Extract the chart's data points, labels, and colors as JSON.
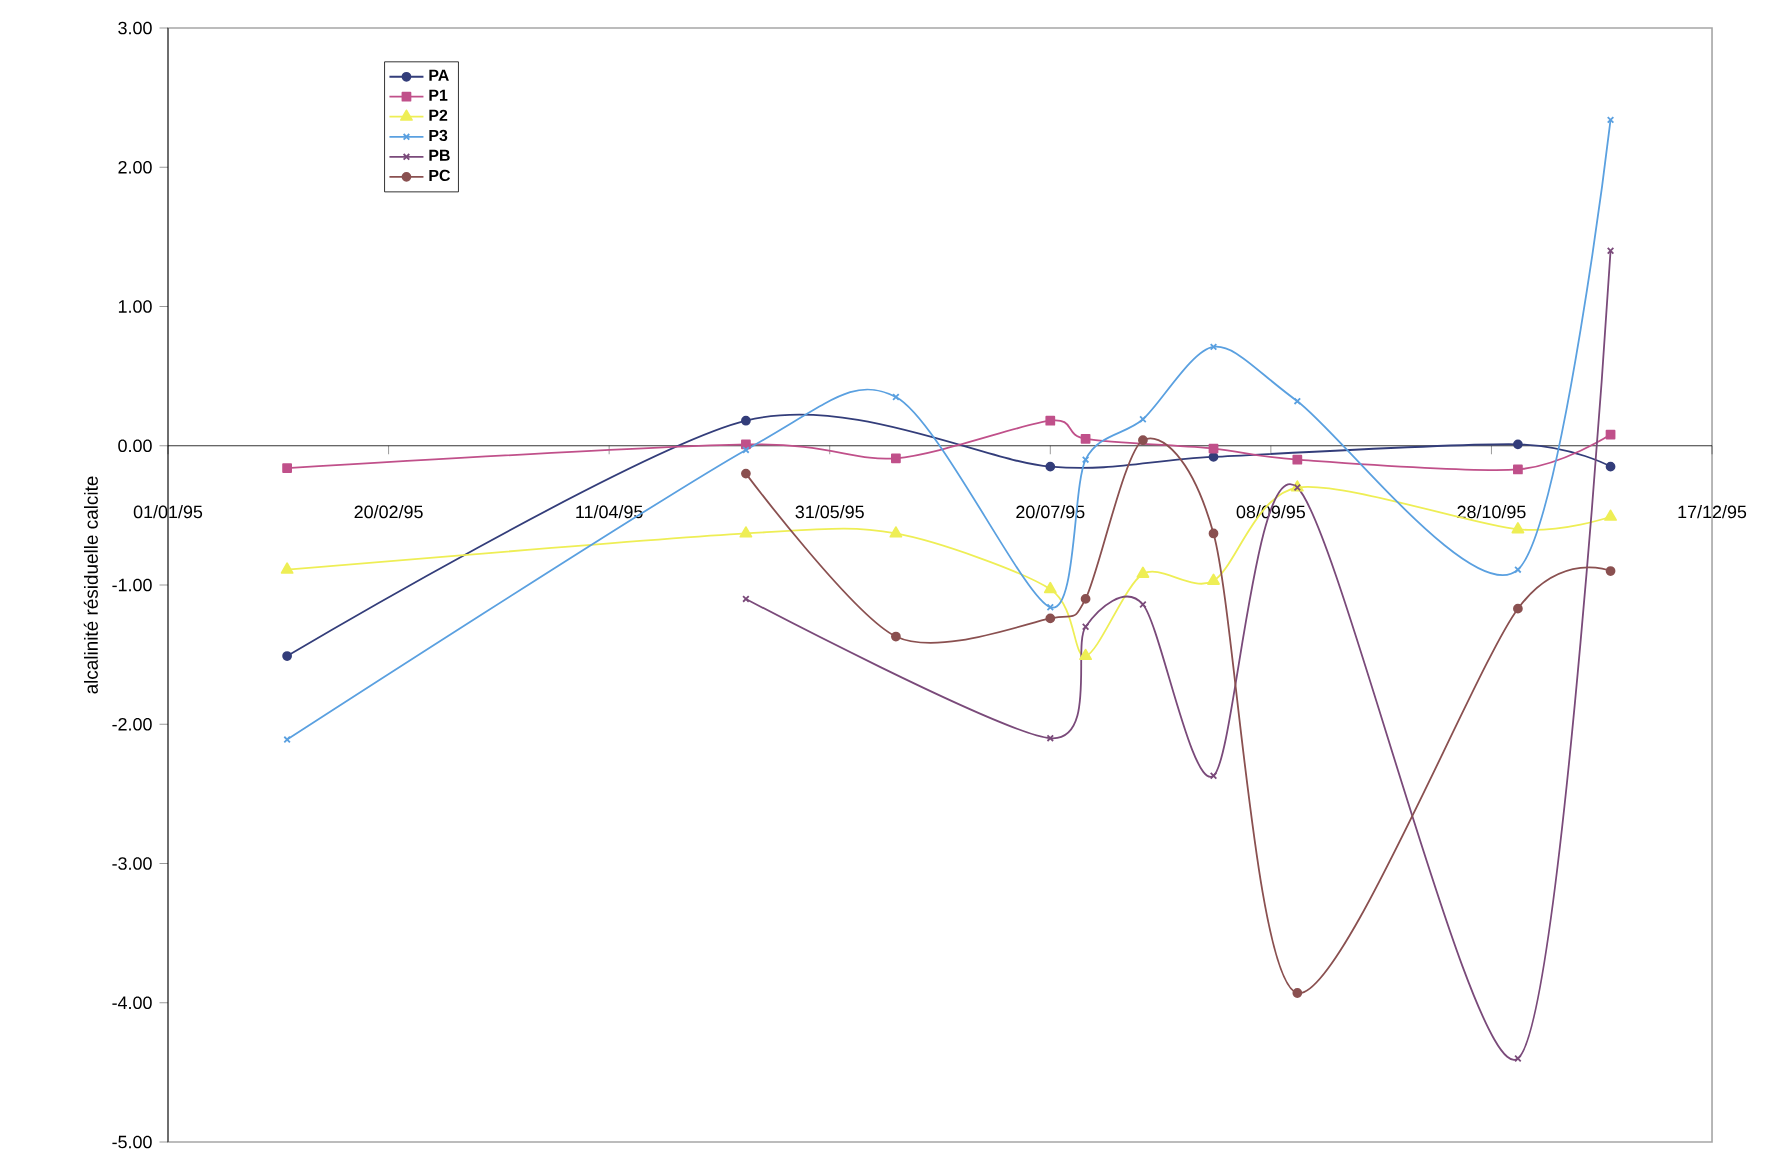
{
  "chart_data": {
    "type": "line",
    "ylabel": "alcalinité résiduelle calcite",
    "legend": "top left",
    "xlim": [
      "1995-01-01",
      "1995-12-17"
    ],
    "xticks": [
      {
        "value": "1995-01-01",
        "label": "01/01/95"
      },
      {
        "value": "1995-02-20",
        "label": "20/02/95"
      },
      {
        "value": "1995-04-11",
        "label": "11/04/95"
      },
      {
        "value": "1995-05-31",
        "label": "31/05/95"
      },
      {
        "value": "1995-07-20",
        "label": "20/07/95"
      },
      {
        "value": "1995-09-08",
        "label": "08/09/95"
      },
      {
        "value": "1995-10-28",
        "label": "28/10/95"
      },
      {
        "value": "1995-12-17",
        "label": "17/12/95"
      }
    ],
    "ylim": [
      -5,
      3
    ],
    "yticks": [
      {
        "value": -5,
        "label": "-5.00"
      },
      {
        "value": -4,
        "label": "-4.00"
      },
      {
        "value": -3,
        "label": "-3.00"
      },
      {
        "value": -2,
        "label": "-2.00"
      },
      {
        "value": -1,
        "label": "-1.00"
      },
      {
        "value": 0,
        "label": "0.00"
      },
      {
        "value": 1,
        "label": "1.00"
      },
      {
        "value": 2,
        "label": "2.00"
      },
      {
        "value": 3,
        "label": "3.00"
      }
    ],
    "series": [
      {
        "name": "PA",
        "color": "#333d7a",
        "marker": "circle",
        "x": [
          "1995-01-28",
          "1995-05-12",
          "1995-07-20",
          "1995-08-26",
          "1995-11-03",
          "1995-11-24"
        ],
        "values": [
          -1.51,
          0.18,
          -0.15,
          -0.08,
          0.01,
          -0.15
        ]
      },
      {
        "name": "P1",
        "color": "#c0508a",
        "marker": "square",
        "x": [
          "1995-01-28",
          "1995-05-12",
          "1995-06-15",
          "1995-07-20",
          "1995-07-28",
          "1995-08-26",
          "1995-09-14",
          "1995-11-03",
          "1995-11-24"
        ],
        "values": [
          -0.16,
          0.01,
          -0.09,
          0.18,
          0.05,
          -0.02,
          -0.1,
          -0.17,
          0.08
        ]
      },
      {
        "name": "P2",
        "color": "#eeee55",
        "marker": "triangle",
        "x": [
          "1995-01-28",
          "1995-05-12",
          "1995-06-15",
          "1995-07-20",
          "1995-07-28",
          "1995-08-10",
          "1995-08-26",
          "1995-09-14",
          "1995-11-03",
          "1995-11-24"
        ],
        "values": [
          -0.89,
          -0.63,
          -0.63,
          -1.03,
          -1.51,
          -0.92,
          -0.97,
          -0.3,
          -0.6,
          -0.51
        ]
      },
      {
        "name": "P3",
        "color": "#5aa0e0",
        "marker": "cross",
        "x": [
          "1995-01-28",
          "1995-05-12",
          "1995-06-15",
          "1995-07-20",
          "1995-07-28",
          "1995-08-10",
          "1995-08-26",
          "1995-09-14",
          "1995-11-03",
          "1995-11-24"
        ],
        "values": [
          -2.11,
          -0.03,
          0.35,
          -1.16,
          -0.1,
          0.19,
          0.71,
          0.32,
          -0.89,
          2.34
        ]
      },
      {
        "name": "PB",
        "color": "#7a4a7a",
        "marker": "cross",
        "x": [
          "1995-05-12",
          "1995-07-20",
          "1995-07-28",
          "1995-08-10",
          "1995-08-26",
          "1995-09-14",
          "1995-11-03",
          "1995-11-24"
        ],
        "values": [
          -1.1,
          -2.1,
          -1.3,
          -1.14,
          -2.37,
          -0.3,
          -4.4,
          1.4
        ]
      },
      {
        "name": "PC",
        "color": "#8a5050",
        "marker": "circle",
        "x": [
          "1995-05-12",
          "1995-06-15",
          "1995-07-20",
          "1995-07-28",
          "1995-08-10",
          "1995-08-26",
          "1995-09-14",
          "1995-11-03",
          "1995-11-24"
        ],
        "values": [
          -0.2,
          -1.37,
          -1.24,
          -1.1,
          0.04,
          -0.63,
          -3.93,
          -1.17,
          -0.9
        ]
      }
    ]
  }
}
